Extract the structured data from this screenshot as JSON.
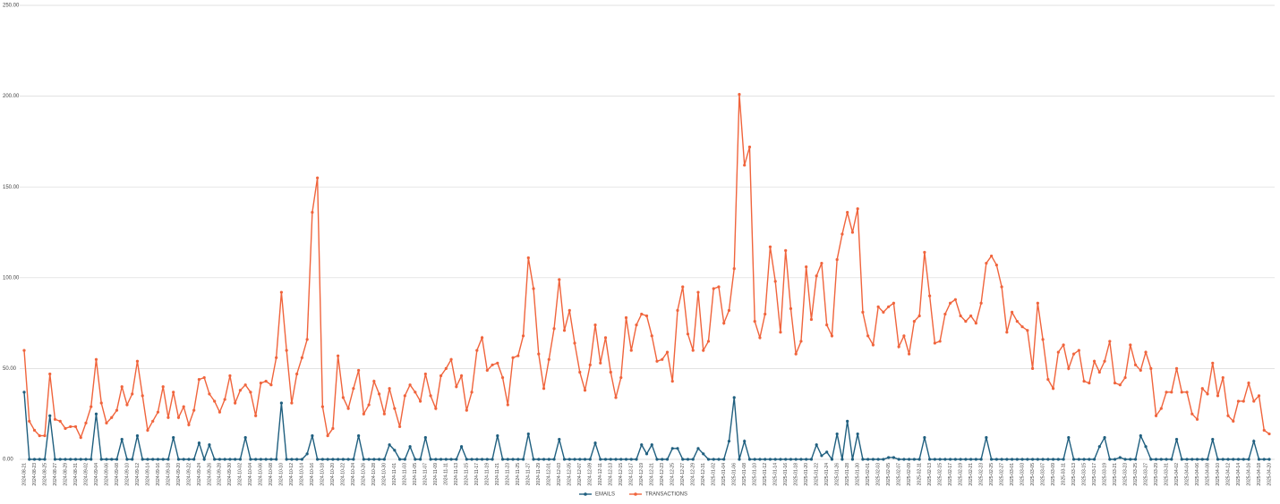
{
  "chart_data": {
    "type": "line",
    "categories": [
      "2024-08-21",
      null,
      "2024-08-23",
      null,
      "2024-08-25",
      null,
      "2024-08-27",
      null,
      "2024-08-29",
      null,
      "2024-08-31",
      null,
      "2024-09-02",
      null,
      "2024-09-04",
      null,
      "2024-09-06",
      null,
      "2024-09-08",
      null,
      "2024-09-10",
      null,
      "2024-09-12",
      null,
      "2024-09-14",
      null,
      "2024-09-16",
      null,
      "2024-09-18",
      null,
      "2024-09-20",
      null,
      "2024-09-22",
      null,
      "2024-09-24",
      null,
      "2024-09-26",
      null,
      "2024-09-28",
      null,
      "2024-09-30",
      null,
      "2024-10-02",
      null,
      "2024-10-04",
      null,
      "2024-10-06",
      null,
      "2024-10-08",
      null,
      "2024-10-10",
      null,
      "2024-10-12",
      null,
      "2024-10-14",
      null,
      "2024-10-16",
      null,
      "2024-10-18",
      null,
      "2024-10-20",
      null,
      "2024-10-22",
      null,
      "2024-10-24",
      null,
      "2024-10-26",
      null,
      "2024-10-28",
      null,
      "2024-10-30",
      null,
      "2024-11-01",
      null,
      "2024-11-03",
      null,
      "2024-11-05",
      null,
      "2024-11-07",
      null,
      "2024-11-09",
      null,
      "2024-11-11",
      null,
      "2024-11-13",
      null,
      "2024-11-15",
      null,
      "2024-11-17",
      null,
      "2024-11-19",
      null,
      "2024-11-21",
      null,
      "2024-11-23",
      null,
      "2024-11-25",
      null,
      "2024-11-27",
      null,
      "2024-11-29",
      null,
      "2024-12-01",
      null,
      "2024-12-03",
      null,
      "2024-12-05",
      null,
      "2024-12-07",
      null,
      "2024-12-09",
      null,
      "2024-12-11",
      null,
      "2024-12-13",
      null,
      "2024-12-15",
      null,
      "2024-12-17",
      null,
      "2024-12-19",
      null,
      "2024-12-21",
      null,
      "2024-12-23",
      null,
      "2024-12-25",
      null,
      "2024-12-27",
      null,
      "2024-12-29",
      null,
      "2024-12-31",
      null,
      "2025-01-02",
      null,
      "2025-01-04",
      null,
      "2025-01-06",
      null,
      "2025-01-08",
      null,
      "2025-01-10",
      null,
      "2025-01-12",
      null,
      "2025-01-14",
      null,
      "2025-01-16",
      null,
      "2025-01-18",
      null,
      "2025-01-20",
      null,
      "2025-01-22",
      null,
      "2025-01-24",
      null,
      "2025-01-26",
      null,
      "2025-01-28",
      null,
      "2025-01-30",
      null,
      "2025-02-01",
      null,
      "2025-02-03",
      null,
      "2025-02-05",
      null,
      "2025-02-07",
      null,
      "2025-02-09",
      null,
      "2025-02-11",
      null,
      "2025-02-13",
      null,
      "2025-02-15",
      null,
      "2025-02-17",
      null,
      "2025-02-19",
      null,
      "2025-02-21",
      null,
      "2025-02-23",
      null,
      "2025-02-25",
      null,
      "2025-02-27",
      null,
      "2025-03-01",
      null,
      "2025-03-03",
      null,
      "2025-03-05",
      null,
      "2025-03-07",
      null,
      "2025-03-09",
      null,
      "2025-03-11",
      null,
      "2025-03-13",
      null,
      "2025-03-15",
      null,
      "2025-03-17",
      null,
      "2025-03-19",
      null,
      "2025-03-21",
      null,
      "2025-03-23",
      null,
      "2025-03-25",
      null,
      "2025-03-27",
      null,
      "2025-03-29",
      null,
      "2025-03-31",
      null,
      "2025-04-02",
      null,
      "2025-04-04",
      null,
      "2025-04-06",
      null,
      "2025-04-08",
      null,
      "2025-04-10",
      null,
      "2025-04-12",
      null,
      "2025-04-14",
      null,
      "2025-04-16",
      null,
      "2025-04-18",
      null,
      "2025-04-20"
    ],
    "series": [
      {
        "name": "EMAILS",
        "color": "#1f5f7f",
        "values": [
          37,
          0,
          0,
          0,
          0,
          24,
          0,
          0,
          0,
          0,
          0,
          0,
          0,
          0,
          25,
          0,
          0,
          0,
          0,
          11,
          0,
          0,
          13,
          0,
          0,
          0,
          0,
          0,
          0,
          12,
          0,
          0,
          0,
          0,
          9,
          0,
          8,
          0,
          0,
          0,
          0,
          0,
          0,
          12,
          0,
          0,
          0,
          0,
          0,
          0,
          31,
          0,
          0,
          0,
          0,
          3,
          13,
          0,
          0,
          0,
          0,
          0,
          0,
          0,
          0,
          13,
          0,
          0,
          0,
          0,
          0,
          8,
          5,
          0,
          0,
          7,
          0,
          0,
          12,
          0,
          0,
          0,
          0,
          0,
          0,
          7,
          0,
          0,
          0,
          0,
          0,
          0,
          13,
          0,
          0,
          0,
          0,
          0,
          14,
          0,
          0,
          0,
          0,
          0,
          11,
          0,
          0,
          0,
          0,
          0,
          0,
          9,
          0,
          0,
          0,
          0,
          0,
          0,
          0,
          0,
          8,
          3,
          8,
          0,
          0,
          0,
          6,
          6,
          0,
          0,
          0,
          6,
          3,
          0,
          0,
          0,
          0,
          10,
          34,
          0,
          10,
          0,
          0,
          0,
          0,
          0,
          0,
          0,
          0,
          0,
          0,
          0,
          0,
          0,
          8,
          2,
          4,
          0,
          14,
          0,
          21,
          0,
          14,
          0,
          0,
          0,
          0,
          0,
          1,
          1,
          0,
          0,
          0,
          0,
          0,
          12,
          0,
          0,
          0,
          0,
          0,
          0,
          0,
          0,
          0,
          0,
          0,
          12,
          0,
          0,
          0,
          0,
          0,
          0,
          0,
          0,
          0,
          0,
          0,
          0,
          0,
          0,
          0,
          12,
          0,
          0,
          0,
          0,
          0,
          7,
          12,
          0,
          0,
          1,
          0,
          0,
          0,
          13,
          7,
          0,
          0,
          0,
          0,
          0,
          11,
          0,
          0,
          0,
          0,
          0,
          0,
          11,
          0,
          0,
          0,
          0,
          0,
          0,
          0,
          10,
          0,
          0,
          0
        ]
      },
      {
        "name": "TRANSACTIONS",
        "color": "#f0643c",
        "values": [
          60,
          21,
          16,
          13,
          13,
          47,
          22,
          21,
          17,
          18,
          18,
          12,
          20,
          29,
          55,
          31,
          20,
          23,
          27,
          40,
          30,
          36,
          54,
          35,
          16,
          21,
          26,
          40,
          23,
          37,
          23,
          29,
          19,
          27,
          44,
          45,
          36,
          32,
          26,
          33,
          46,
          31,
          38,
          41,
          37,
          24,
          42,
          43,
          41,
          56,
          92,
          60,
          31,
          47,
          56,
          66,
          136,
          155,
          29,
          13,
          17,
          57,
          34,
          28,
          39,
          49,
          25,
          30,
          43,
          36,
          25,
          39,
          28,
          18,
          35,
          41,
          37,
          32,
          47,
          35,
          28,
          46,
          50,
          55,
          40,
          46,
          27,
          37,
          60,
          67,
          49,
          52,
          53,
          45,
          30,
          56,
          57,
          68,
          111,
          94,
          58,
          39,
          55,
          72,
          99,
          71,
          82,
          64,
          48,
          38,
          52,
          74,
          53,
          67,
          48,
          34,
          45,
          78,
          60,
          74,
          80,
          79,
          68,
          54,
          55,
          59,
          43,
          82,
          95,
          69,
          60,
          92,
          60,
          65,
          94,
          95,
          75,
          82,
          105,
          201,
          162,
          172,
          76,
          67,
          80,
          117,
          98,
          70,
          115,
          83,
          58,
          65,
          106,
          77,
          101,
          108,
          74,
          68,
          110,
          124,
          136,
          125,
          138,
          81,
          68,
          63,
          84,
          81,
          84,
          86,
          62,
          68,
          58,
          76,
          79,
          114,
          90,
          64,
          65,
          80,
          86,
          88,
          79,
          76,
          79,
          75,
          86,
          108,
          112,
          107,
          95,
          70,
          81,
          76,
          73,
          71,
          50,
          86,
          66,
          44,
          39,
          59,
          63,
          50,
          58,
          60,
          43,
          42,
          54,
          48,
          54,
          65,
          42,
          41,
          45,
          63,
          52,
          49,
          59,
          50,
          24,
          28,
          37,
          37,
          50,
          37,
          37,
          25,
          22,
          39,
          36,
          53,
          35,
          45,
          24,
          21,
          32,
          32,
          42,
          32,
          35,
          16,
          14
        ]
      }
    ],
    "ylim": [
      0,
      250
    ],
    "yticks": [
      {
        "value": 0,
        "label": "0.00"
      },
      {
        "value": 50,
        "label": "50.00"
      },
      {
        "value": 100,
        "label": "100.00"
      },
      {
        "value": 150,
        "label": "150.00"
      },
      {
        "value": 200,
        "label": "200.00"
      },
      {
        "value": 250,
        "label": "250.00"
      }
    ],
    "grid": true,
    "legend": "bottom"
  }
}
